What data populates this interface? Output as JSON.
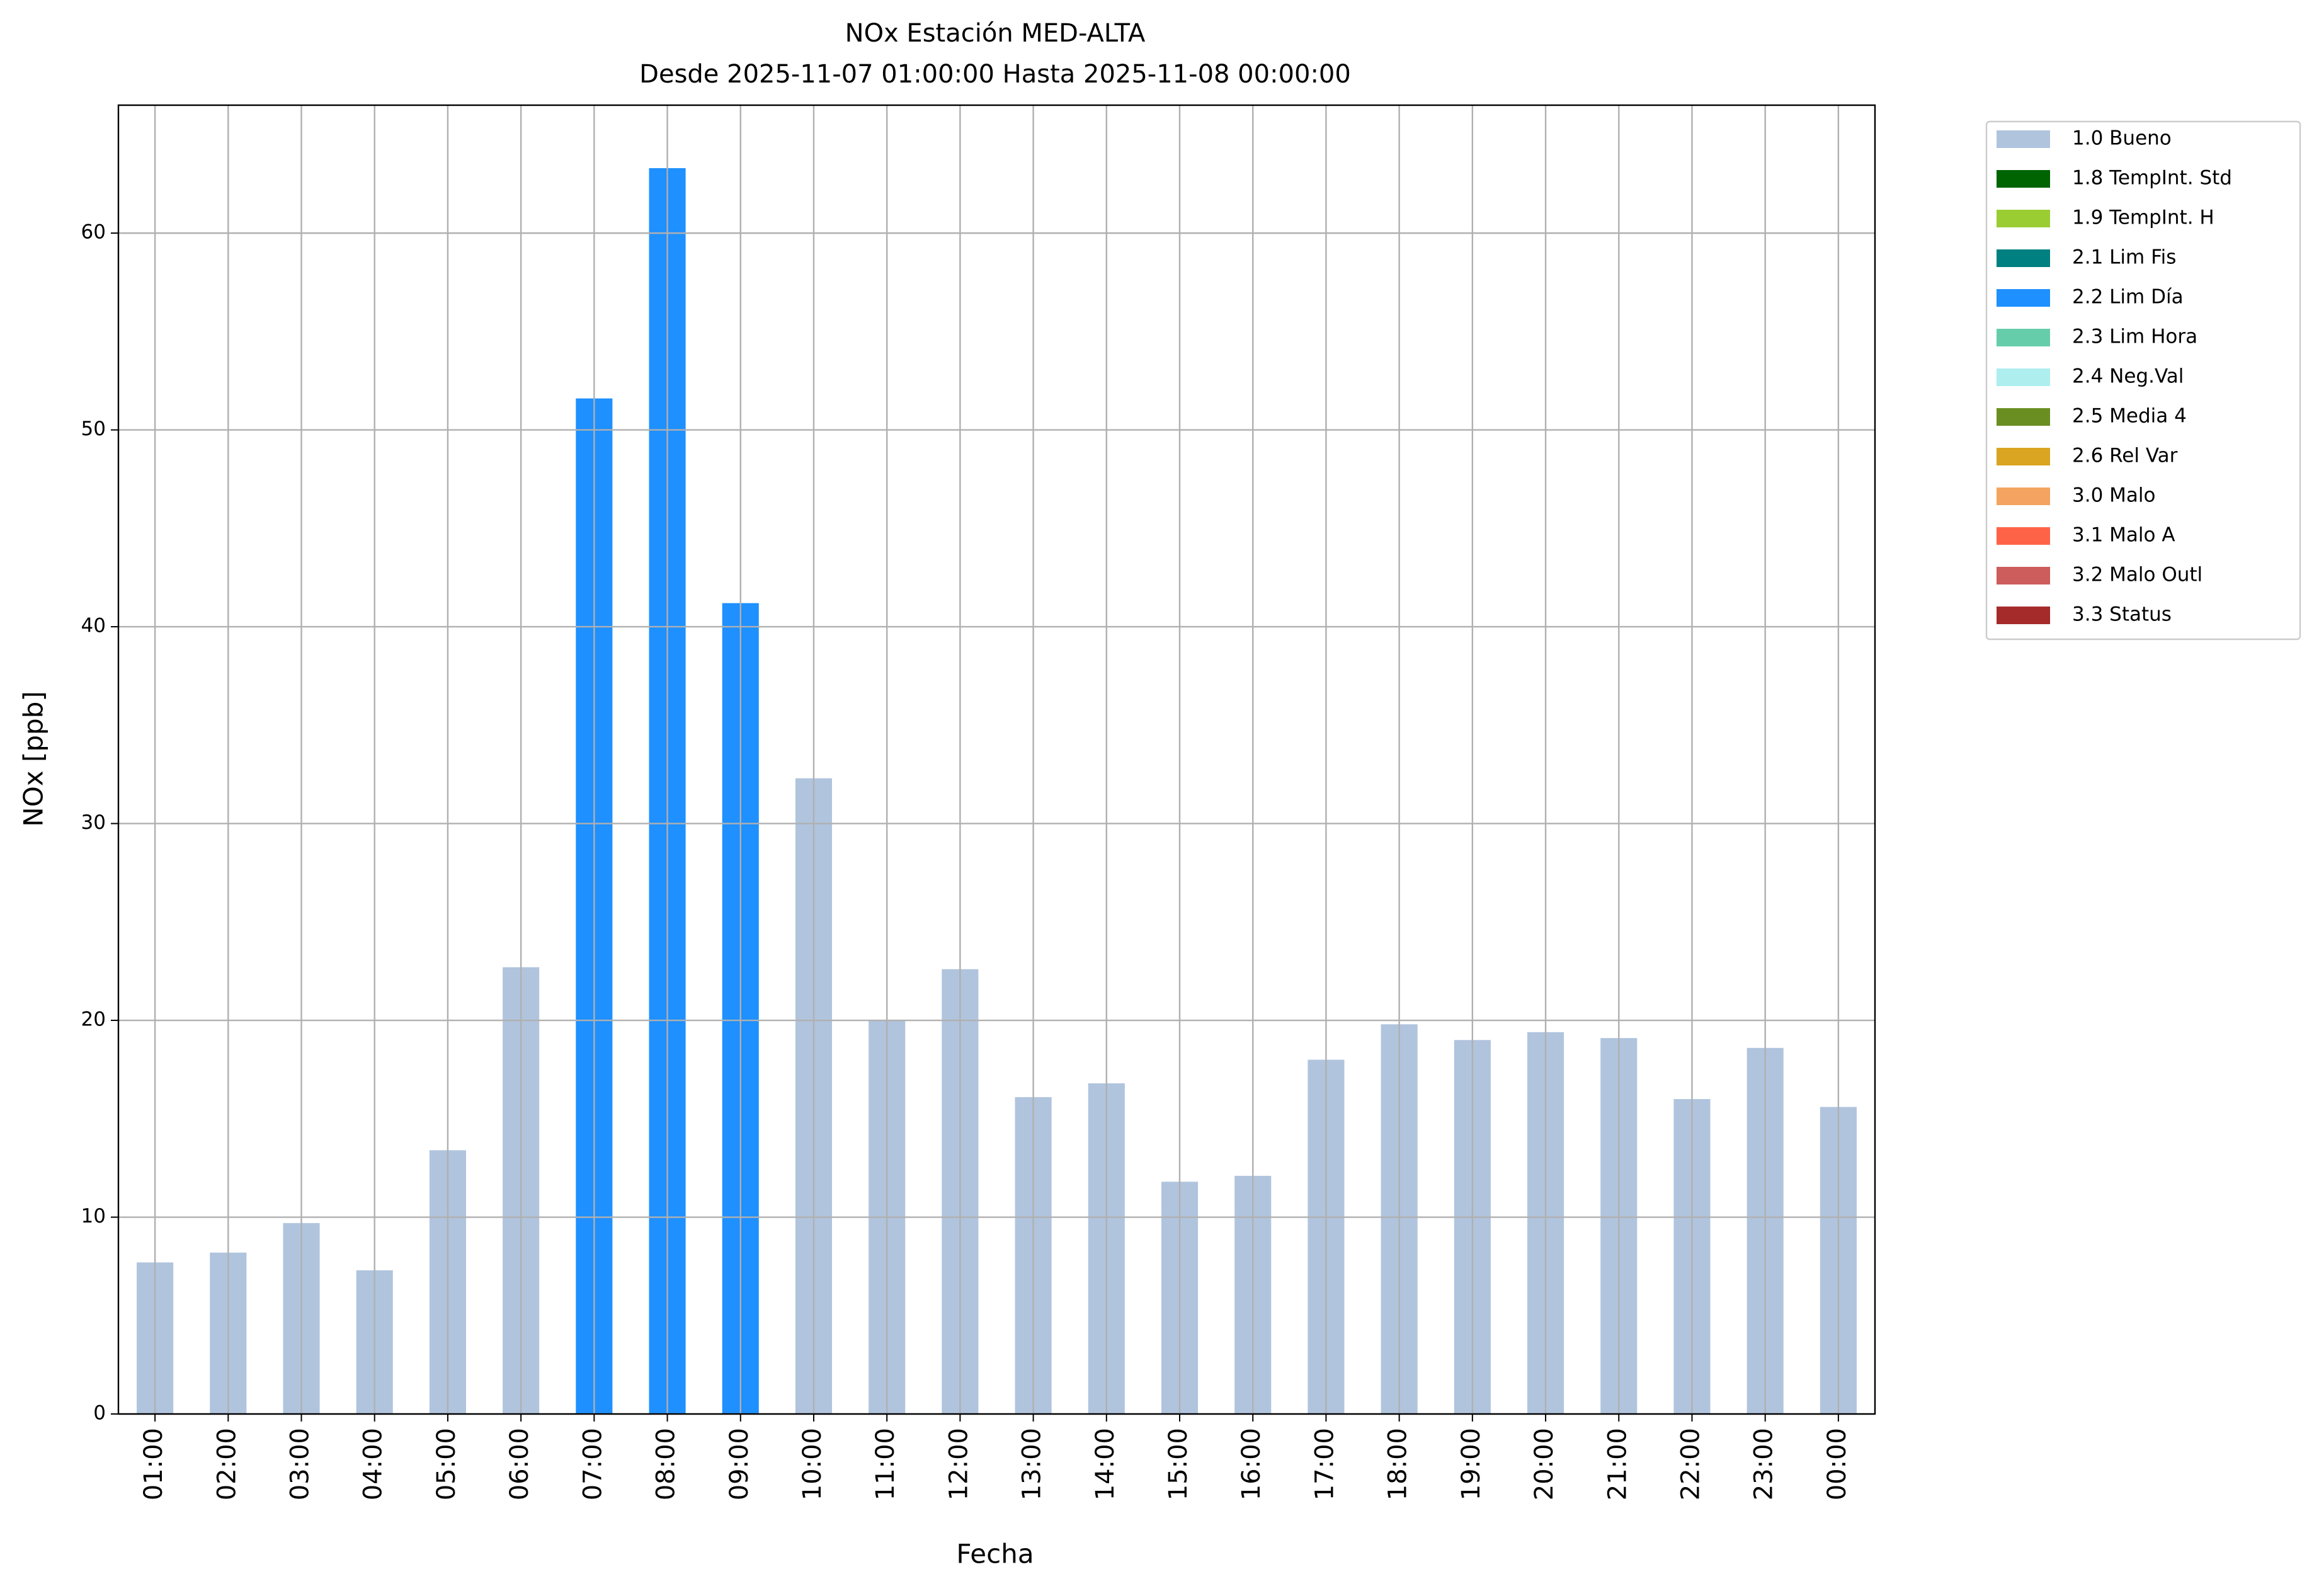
{
  "chart_data": {
    "type": "stacked_bar",
    "title": "NOx Estación MED-ALTA",
    "subtitle": "Desde 2025-11-07 01:00:00 Hasta 2025-11-08 00:00:00",
    "x_label": "Fecha",
    "y_label": "NOx [ppb]",
    "categories": [
      "01:00",
      "02:00",
      "03:00",
      "04:00",
      "05:00",
      "06:00",
      "07:00",
      "08:00",
      "09:00",
      "10:00",
      "11:00",
      "12:00",
      "13:00",
      "14:00",
      "15:00",
      "16:00",
      "17:00",
      "18:00",
      "19:00",
      "20:00",
      "21:00",
      "22:00",
      "23:00",
      "00:00"
    ],
    "series": [
      {
        "name": "1.0 Bueno",
        "color": "#b0c4de",
        "values": [
          7.7,
          8.2,
          9.7,
          7.3,
          13.4,
          22.7,
          null,
          null,
          null,
          32.3,
          20.0,
          22.6,
          16.1,
          16.8,
          11.8,
          12.1,
          18.0,
          19.8,
          19.0,
          19.4,
          19.1,
          16.0,
          18.6,
          15.6
        ]
      },
      {
        "name": "1.8 TempInt. Std",
        "color": "#006400",
        "values": [
          null,
          null,
          null,
          null,
          null,
          null,
          null,
          null,
          null,
          null,
          null,
          null,
          null,
          null,
          null,
          null,
          null,
          null,
          null,
          null,
          null,
          null,
          null,
          null
        ]
      },
      {
        "name": "1.9 TempInt. H",
        "color": "#9acd32",
        "values": [
          null,
          null,
          null,
          null,
          null,
          null,
          null,
          null,
          null,
          null,
          null,
          null,
          null,
          null,
          null,
          null,
          null,
          null,
          null,
          null,
          null,
          null,
          null,
          null
        ]
      },
      {
        "name": "2.1 Lim Fis",
        "color": "#008080",
        "values": [
          null,
          null,
          null,
          null,
          null,
          null,
          null,
          null,
          null,
          null,
          null,
          null,
          null,
          null,
          null,
          null,
          null,
          null,
          null,
          null,
          null,
          null,
          null,
          null
        ]
      },
      {
        "name": "2.2 Lim Día",
        "color": "#1e90ff",
        "values": [
          null,
          null,
          null,
          null,
          null,
          null,
          51.6,
          63.3,
          41.2,
          null,
          null,
          null,
          null,
          null,
          null,
          null,
          null,
          null,
          null,
          null,
          null,
          null,
          null,
          null
        ]
      },
      {
        "name": "2.3 Lim Hora",
        "color": "#66cdaa",
        "values": [
          null,
          null,
          null,
          null,
          null,
          null,
          null,
          null,
          null,
          null,
          null,
          null,
          null,
          null,
          null,
          null,
          null,
          null,
          null,
          null,
          null,
          null,
          null,
          null
        ]
      },
      {
        "name": "2.4 Neg.Val",
        "color": "#afeeee",
        "values": [
          null,
          null,
          null,
          null,
          null,
          null,
          null,
          null,
          null,
          null,
          null,
          null,
          null,
          null,
          null,
          null,
          null,
          null,
          null,
          null,
          null,
          null,
          null,
          null
        ]
      },
      {
        "name": "2.5 Media 4",
        "color": "#6b8e23",
        "values": [
          null,
          null,
          null,
          null,
          null,
          null,
          null,
          null,
          null,
          null,
          null,
          null,
          null,
          null,
          null,
          null,
          null,
          null,
          null,
          null,
          null,
          null,
          null,
          null
        ]
      },
      {
        "name": "2.6 Rel Var",
        "color": "#daa520",
        "values": [
          null,
          null,
          null,
          null,
          null,
          null,
          null,
          null,
          null,
          null,
          null,
          null,
          null,
          null,
          null,
          null,
          null,
          null,
          null,
          null,
          null,
          null,
          null,
          null
        ]
      },
      {
        "name": "3.0 Malo",
        "color": "#f4a460",
        "values": [
          null,
          null,
          null,
          null,
          null,
          null,
          null,
          null,
          null,
          null,
          null,
          null,
          null,
          null,
          null,
          null,
          null,
          null,
          null,
          null,
          null,
          null,
          null,
          null
        ]
      },
      {
        "name": "3.1 Malo A",
        "color": "#ff6347",
        "values": [
          null,
          null,
          null,
          null,
          null,
          null,
          null,
          null,
          null,
          null,
          null,
          null,
          null,
          null,
          null,
          null,
          null,
          null,
          null,
          null,
          null,
          null,
          null,
          null
        ]
      },
      {
        "name": "3.2 Malo Outl",
        "color": "#cd5c5c",
        "values": [
          null,
          null,
          null,
          null,
          null,
          null,
          null,
          null,
          null,
          null,
          null,
          null,
          null,
          null,
          null,
          null,
          null,
          null,
          null,
          null,
          null,
          null,
          null,
          null
        ]
      },
      {
        "name": "3.3 Status",
        "color": "#a52a2a",
        "values": [
          null,
          null,
          null,
          null,
          null,
          null,
          null,
          null,
          null,
          null,
          null,
          null,
          null,
          null,
          null,
          null,
          null,
          null,
          null,
          null,
          null,
          null,
          null,
          null
        ]
      }
    ],
    "ylim": [
      0,
      66.5
    ],
    "yticks": [
      0,
      10,
      20,
      30,
      40,
      50,
      60
    ],
    "grid": true
  }
}
